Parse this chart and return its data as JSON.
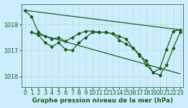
{
  "background_color": "#cceeff",
  "grid_color": "#bbddcc",
  "line_color": "#1a5c1a",
  "title": "Graphe pression niveau de la mer (hPa)",
  "tick_fontsize": 6,
  "title_fontsize": 6.5,
  "xlim": [
    -0.5,
    23.5
  ],
  "ylim": [
    1015.6,
    1018.8
  ],
  "yticks": [
    1016,
    1017,
    1018
  ],
  "xticks": [
    0,
    1,
    2,
    3,
    4,
    5,
    6,
    7,
    8,
    9,
    10,
    11,
    12,
    13,
    14,
    15,
    16,
    17,
    18,
    19,
    20,
    21,
    22,
    23
  ],
  "lines": [
    {
      "x": [
        0,
        1,
        2,
        3,
        4,
        5,
        6,
        7,
        8,
        9,
        10,
        11,
        12,
        13,
        14,
        15,
        16,
        17,
        18,
        19,
        20,
        21,
        22,
        23
      ],
      "y": [
        1018.55,
        1018.3,
        1017.7,
        1017.55,
        1017.45,
        1017.5,
        1017.35,
        1017.5,
        1017.65,
        1017.75,
        1017.75,
        1017.7,
        1017.7,
        1017.65,
        1017.4,
        1017.25,
        1017.1,
        1016.8,
        1016.6,
        1016.15,
        1016.3,
        1017.05,
        1017.75,
        1017.8
      ],
      "marker": "D",
      "markersize": 2.0,
      "linewidth": 0.9
    },
    {
      "x": [
        1,
        2,
        3,
        4,
        5,
        6,
        7,
        8,
        9,
        10,
        11,
        12,
        13,
        14,
        15,
        16,
        17,
        18,
        19,
        20,
        21,
        22,
        23
      ],
      "y": [
        1017.7,
        1017.6,
        1017.3,
        1017.15,
        1017.3,
        1017.05,
        1017.0,
        1017.3,
        1017.5,
        1017.7,
        1017.7,
        1017.7,
        1017.65,
        1017.55,
        1017.45,
        1017.1,
        1016.85,
        1016.45,
        1016.15,
        1016.05,
        1016.45,
        1017.1,
        1017.7
      ],
      "marker": "D",
      "markersize": 2.0,
      "linewidth": 0.9
    },
    {
      "x": [
        0,
        23
      ],
      "y": [
        1018.55,
        1017.8
      ],
      "marker": null,
      "markersize": 0,
      "linewidth": 0.9
    },
    {
      "x": [
        1,
        23
      ],
      "y": [
        1017.7,
        1016.1
      ],
      "marker": null,
      "markersize": 0,
      "linewidth": 0.9
    }
  ]
}
